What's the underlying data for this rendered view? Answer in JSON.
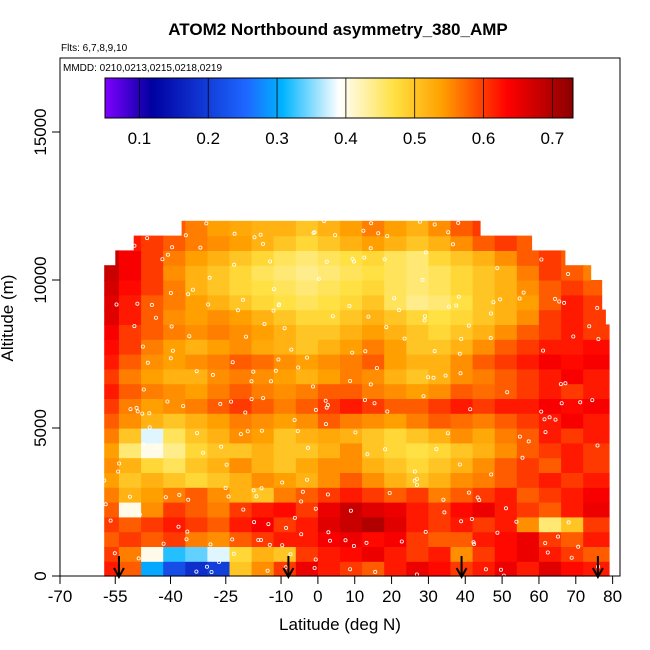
{
  "chart_data": {
    "type": "heatmap",
    "title": "ATOM2 Northbound asymmetry_380_AMP",
    "annotations": [
      "Flts: 6,7,8,9,10",
      "MMDD: 0210,0213,0215,0218,0219"
    ],
    "xlabel": "Latitude (deg N)",
    "ylabel": "Altitude (m)",
    "xlim": [
      -70,
      82
    ],
    "ylim": [
      0,
      17500
    ],
    "x_ticks": [
      "-70",
      "-55",
      "-40",
      "-25",
      "-10",
      "0",
      "10",
      "20",
      "30",
      "40",
      "50",
      "60",
      "70",
      "80"
    ],
    "x_tick_values": [
      -70,
      -55,
      -40,
      -25,
      -10,
      0,
      10,
      20,
      30,
      40,
      50,
      60,
      70,
      80
    ],
    "y_ticks": [
      "0",
      "5000",
      "10000",
      "15000"
    ],
    "y_tick_values": [
      0,
      5000,
      10000,
      15000
    ],
    "colorbar": {
      "ticks": [
        "0.1",
        "0.2",
        "0.3",
        "0.4",
        "0.5",
        "0.6",
        "0.7"
      ],
      "tick_values": [
        0.1,
        0.2,
        0.3,
        0.4,
        0.5,
        0.6,
        0.7
      ],
      "range": [
        0.05,
        0.73
      ],
      "colors": [
        "#7f00ff",
        "#0000a0",
        "#1e66ff",
        "#00b4ff",
        "#ffffff",
        "#ffe040",
        "#ffa000",
        "#ff0000",
        "#8b0000"
      ]
    },
    "profile_markers_lat": [
      -54,
      -8,
      39,
      76
    ],
    "altitude_bins": [
      250,
      750,
      1250,
      1750,
      2250,
      2750,
      3250,
      3750,
      4250,
      4750,
      5250,
      5750,
      6250,
      6750,
      7250,
      7750,
      8250,
      8750,
      9250,
      9750,
      10250,
      10750,
      11250,
      11750
    ],
    "latitude_bins": [
      -57,
      -51,
      -45,
      -39,
      -33,
      -27,
      -21,
      -15,
      -9,
      -3,
      3,
      9,
      15,
      21,
      27,
      33,
      39,
      45,
      51,
      57,
      63,
      69,
      75
    ],
    "values": [
      [
        0.62,
        0.58,
        0.3,
        0.22,
        0.18,
        0.2,
        0.5,
        0.55,
        0.6,
        0.65,
        0.62,
        0.6,
        0.58,
        0.62,
        0.65,
        0.63,
        0.6,
        0.62,
        0.65,
        0.62,
        0.66,
        0.63,
        0.62
      ],
      [
        0.6,
        0.56,
        0.4,
        0.32,
        0.34,
        0.38,
        0.48,
        0.52,
        0.5,
        0.6,
        0.62,
        0.63,
        0.65,
        0.62,
        0.6,
        0.62,
        0.55,
        0.6,
        0.63,
        0.65,
        0.62,
        0.6,
        0.58
      ],
      [
        0.58,
        0.6,
        0.58,
        0.6,
        0.56,
        0.55,
        0.58,
        0.6,
        0.62,
        0.62,
        0.64,
        0.65,
        0.63,
        0.64,
        0.6,
        0.58,
        0.58,
        0.62,
        0.63,
        0.65,
        0.6,
        0.58,
        0.62
      ],
      [
        0.6,
        0.58,
        0.6,
        0.62,
        0.6,
        0.58,
        0.62,
        0.64,
        0.6,
        0.62,
        0.66,
        0.68,
        0.7,
        0.66,
        0.62,
        0.6,
        0.62,
        0.6,
        0.62,
        0.55,
        0.45,
        0.5,
        0.6
      ],
      [
        0.58,
        0.4,
        0.55,
        0.6,
        0.58,
        0.56,
        0.6,
        0.62,
        0.63,
        0.6,
        0.65,
        0.68,
        0.66,
        0.65,
        0.62,
        0.6,
        0.63,
        0.65,
        0.62,
        0.6,
        0.58,
        0.62,
        0.65
      ],
      [
        0.56,
        0.52,
        0.54,
        0.56,
        0.58,
        0.55,
        0.52,
        0.5,
        0.56,
        0.58,
        0.6,
        0.62,
        0.6,
        0.58,
        0.6,
        0.56,
        0.58,
        0.6,
        0.62,
        0.58,
        0.6,
        0.62,
        0.64
      ],
      [
        0.54,
        0.5,
        0.52,
        0.5,
        0.48,
        0.5,
        0.52,
        0.55,
        0.54,
        0.52,
        0.55,
        0.58,
        0.55,
        0.52,
        0.5,
        0.52,
        0.55,
        0.56,
        0.58,
        0.6,
        0.62,
        0.6,
        0.62
      ],
      [
        0.55,
        0.52,
        0.48,
        0.46,
        0.5,
        0.52,
        0.55,
        0.52,
        0.5,
        0.53,
        0.55,
        0.55,
        0.52,
        0.5,
        0.48,
        0.5,
        0.52,
        0.55,
        0.58,
        0.6,
        0.58,
        0.62,
        0.6
      ],
      [
        0.54,
        0.45,
        0.4,
        0.44,
        0.48,
        0.5,
        0.5,
        0.52,
        0.5,
        0.5,
        0.52,
        0.55,
        0.5,
        0.48,
        0.47,
        0.48,
        0.5,
        0.52,
        0.55,
        0.58,
        0.6,
        0.62,
        0.6
      ],
      [
        0.56,
        0.5,
        0.38,
        0.46,
        0.5,
        0.52,
        0.55,
        0.54,
        0.5,
        0.52,
        0.53,
        0.52,
        0.5,
        0.48,
        0.5,
        0.52,
        0.55,
        0.53,
        0.56,
        0.58,
        0.62,
        0.6,
        0.62
      ],
      [
        0.58,
        0.55,
        0.52,
        0.5,
        0.52,
        0.54,
        0.56,
        0.55,
        0.54,
        0.55,
        0.58,
        0.56,
        0.55,
        0.54,
        0.56,
        0.58,
        0.57,
        0.56,
        0.58,
        0.6,
        0.62,
        0.64,
        0.62
      ],
      [
        0.6,
        0.56,
        0.54,
        0.55,
        0.56,
        0.58,
        0.6,
        0.58,
        0.56,
        0.58,
        0.6,
        0.62,
        0.6,
        0.58,
        0.58,
        0.6,
        0.62,
        0.6,
        0.62,
        0.62,
        0.64,
        0.63,
        0.64
      ],
      [
        0.62,
        0.58,
        0.56,
        0.55,
        0.54,
        0.56,
        0.58,
        0.56,
        0.55,
        0.56,
        0.58,
        0.58,
        0.56,
        0.55,
        0.54,
        0.55,
        0.58,
        0.57,
        0.58,
        0.6,
        0.62,
        0.6,
        0.62
      ],
      [
        0.6,
        0.56,
        0.54,
        0.52,
        0.52,
        0.55,
        0.56,
        0.55,
        0.54,
        0.52,
        0.54,
        0.56,
        0.55,
        0.52,
        0.5,
        0.52,
        0.55,
        0.56,
        0.58,
        0.6,
        0.62,
        0.64,
        0.62
      ],
      [
        0.62,
        0.58,
        0.55,
        0.54,
        0.55,
        0.56,
        0.58,
        0.57,
        0.55,
        0.54,
        0.55,
        0.56,
        0.58,
        0.54,
        0.52,
        0.52,
        0.55,
        0.58,
        0.6,
        0.62,
        0.64,
        0.63,
        0.64
      ],
      [
        0.63,
        0.6,
        0.56,
        0.54,
        0.52,
        0.54,
        0.55,
        0.53,
        0.52,
        0.5,
        0.52,
        0.54,
        0.56,
        0.54,
        0.5,
        0.5,
        0.52,
        0.55,
        0.58,
        0.6,
        0.62,
        0.62,
        0.63
      ],
      [
        0.64,
        0.6,
        0.58,
        0.56,
        0.55,
        0.56,
        0.55,
        0.54,
        0.52,
        0.5,
        0.5,
        0.52,
        0.54,
        0.52,
        0.5,
        0.48,
        0.5,
        0.52,
        0.55,
        0.58,
        0.6,
        0.62,
        0.6
      ],
      [
        0.66,
        0.62,
        0.58,
        0.55,
        0.54,
        0.55,
        0.54,
        0.52,
        0.5,
        0.48,
        0.48,
        0.5,
        0.52,
        0.5,
        0.48,
        0.47,
        0.48,
        0.5,
        0.52,
        0.55,
        0.6,
        0.62,
        0.6
      ],
      [
        0.66,
        0.62,
        0.58,
        0.56,
        0.54,
        0.52,
        0.5,
        0.48,
        0.47,
        0.46,
        0.47,
        0.48,
        0.5,
        0.46,
        0.44,
        0.45,
        0.47,
        0.5,
        0.52,
        0.54,
        0.58,
        0.62,
        0.6
      ],
      [
        0.67,
        0.63,
        0.6,
        0.56,
        0.52,
        0.5,
        0.48,
        0.47,
        0.46,
        0.45,
        0.46,
        0.47,
        0.48,
        0.46,
        0.45,
        0.46,
        0.48,
        0.5,
        0.52,
        0.55,
        0.58,
        0.6,
        0.58
      ],
      [
        0.68,
        0.64,
        0.6,
        0.55,
        0.52,
        0.5,
        0.48,
        0.46,
        0.45,
        0.44,
        0.45,
        0.46,
        0.47,
        0.46,
        0.45,
        0.46,
        0.48,
        0.5,
        0.52,
        0.56,
        0.6,
        0.58,
        0.56
      ],
      [
        0.68,
        0.64,
        0.6,
        0.56,
        0.54,
        0.52,
        0.5,
        0.48,
        0.46,
        0.45,
        0.46,
        0.47,
        0.48,
        0.46,
        0.45,
        0.48,
        0.5,
        0.52,
        0.55,
        0.58,
        0.6,
        0.58,
        0.56
      ],
      [
        0.66,
        0.62,
        0.6,
        0.58,
        0.56,
        0.55,
        0.54,
        0.52,
        0.5,
        0.48,
        0.5,
        0.52,
        0.54,
        0.52,
        0.5,
        0.52,
        0.55,
        0.58,
        0.6,
        0.58,
        0.56,
        0.55,
        0.55
      ],
      [
        0.64,
        0.62,
        0.6,
        0.58,
        0.56,
        0.54,
        0.53,
        0.52,
        0.52,
        0.5,
        0.52,
        0.54,
        0.56,
        0.54,
        0.52,
        0.55,
        0.58,
        0.6,
        0.58,
        0.56,
        0.55,
        0.55,
        0.55
      ]
    ],
    "row_extent": [
      [
        -58,
        79
      ],
      [
        -58,
        79
      ],
      [
        -58,
        79
      ],
      [
        -58,
        79
      ],
      [
        -58,
        79
      ],
      [
        -58,
        79
      ],
      [
        -58,
        79
      ],
      [
        -58,
        79
      ],
      [
        -58,
        79
      ],
      [
        -58,
        79
      ],
      [
        -58,
        79
      ],
      [
        -58,
        79
      ],
      [
        -58,
        79
      ],
      [
        -58,
        79
      ],
      [
        -58,
        79
      ],
      [
        -58,
        79
      ],
      [
        -58,
        79
      ],
      [
        -58,
        78
      ],
      [
        -58,
        77
      ],
      [
        -58,
        77
      ],
      [
        -58,
        74
      ],
      [
        -55,
        67
      ],
      [
        -50,
        58
      ],
      [
        -37,
        44
      ]
    ]
  }
}
